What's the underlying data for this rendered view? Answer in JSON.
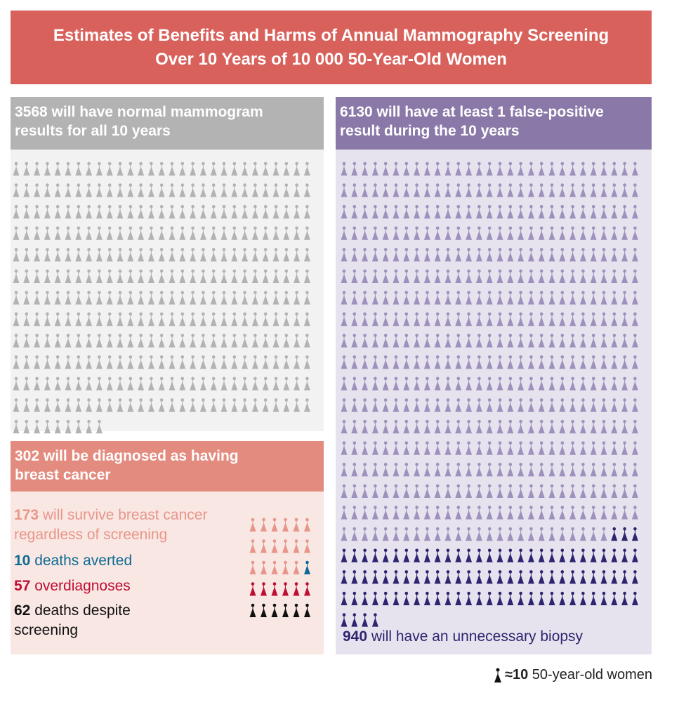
{
  "title": {
    "line1": "Estimates of Benefits and Harms of Annual Mammography Screening",
    "line2": "Over 10 Years of 10 000 50-Year-Old Women"
  },
  "normal": {
    "count": "3568",
    "text_line1": " will have normal mammogram",
    "text_line2": "results for all 10 years",
    "icons": 357,
    "color": "#b3b3b3"
  },
  "false_positive": {
    "count": "6130",
    "text_line1": " will have at least 1 false-positive",
    "text_line2": "result during the 10 years",
    "icons": 613,
    "color": "#9f91bd",
    "biopsy_icons": 94,
    "biopsy_color": "#2e2570",
    "biopsy_count": "940",
    "biopsy_text": " will have an unnecessary biopsy"
  },
  "cancer": {
    "count": "302",
    "text_line1": " will be diagnosed as having",
    "text_line2": "breast cancer",
    "groups": [
      {
        "count": "173",
        "text": " will survive breast cancer regardless of screening",
        "icons": 17,
        "color": "#e8968a"
      },
      {
        "count": "10",
        "text": " deaths averted",
        "icons": 1,
        "color": "#0f6b93"
      },
      {
        "count": "57",
        "text": " overdiagnoses",
        "icons": 6,
        "color": "#bf0d35"
      },
      {
        "count": "62",
        "text": " deaths despite screening",
        "icons": 6,
        "color": "#111111"
      }
    ]
  },
  "legend": {
    "approx": "≈10",
    "text": " 50-year-old women"
  }
}
